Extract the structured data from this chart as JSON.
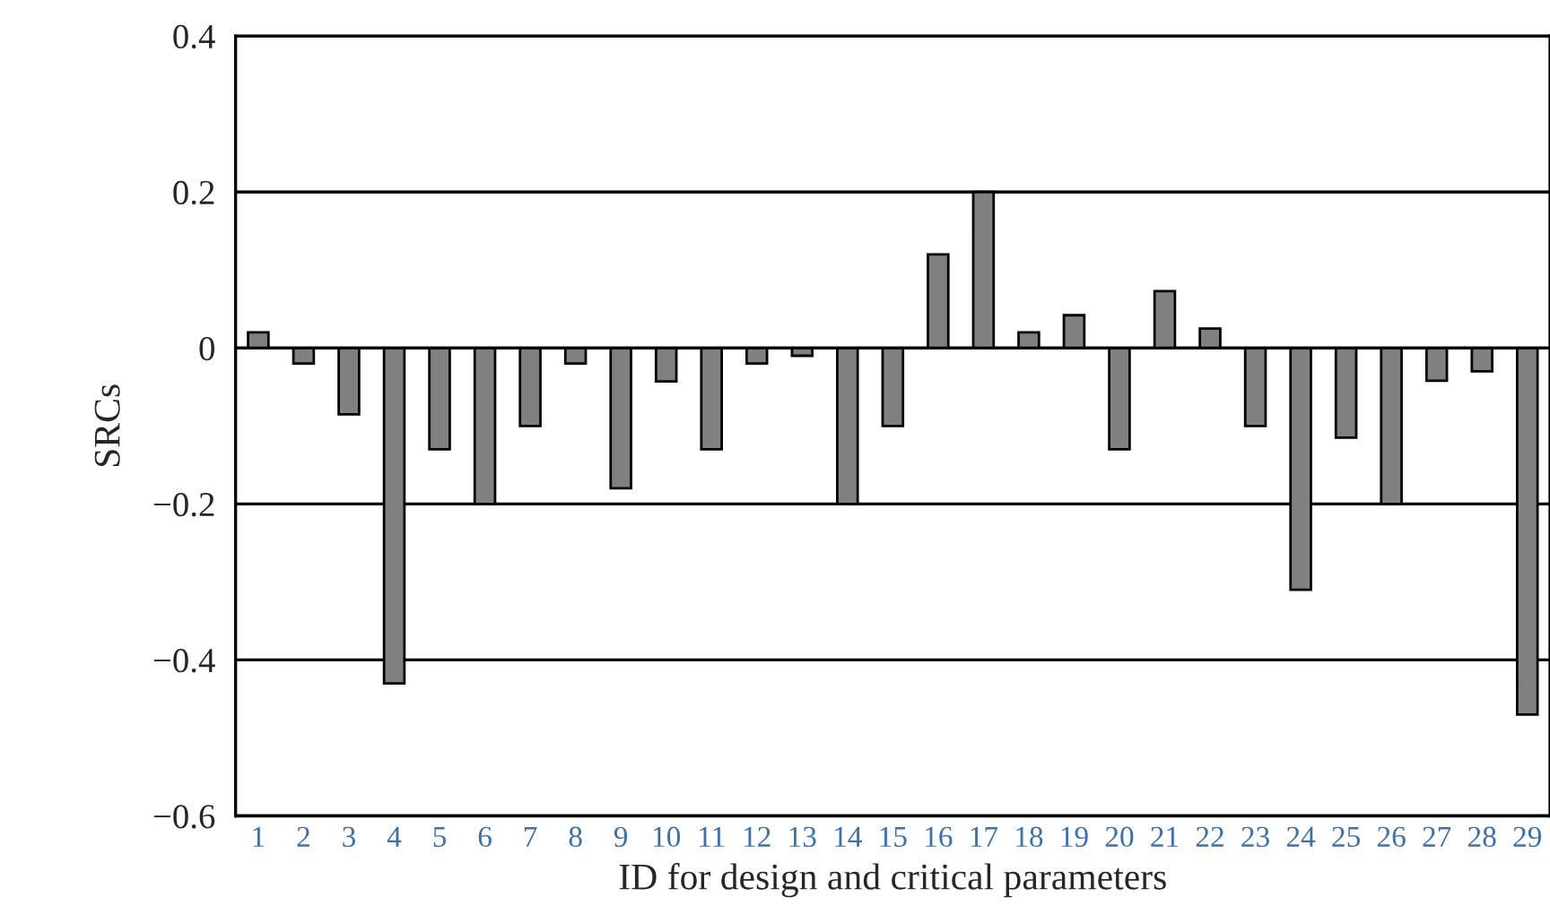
{
  "chart_data": {
    "type": "bar",
    "xlabel": "ID for design and critical parameters",
    "ylabel": "SRCs",
    "categories": [
      "1",
      "2",
      "3",
      "4",
      "5",
      "6",
      "7",
      "8",
      "9",
      "10",
      "11",
      "12",
      "13",
      "14",
      "15",
      "16",
      "17",
      "18",
      "19",
      "20",
      "21",
      "22",
      "23",
      "24",
      "25",
      "26",
      "27",
      "28",
      "29"
    ],
    "values": [
      0.02,
      -0.02,
      -0.085,
      -0.43,
      -0.13,
      -0.2,
      -0.1,
      -0.02,
      -0.18,
      -0.043,
      -0.13,
      -0.02,
      -0.01,
      -0.2,
      -0.1,
      0.12,
      0.2,
      0.02,
      0.042,
      -0.13,
      0.073,
      0.025,
      -0.1,
      -0.31,
      -0.115,
      -0.2,
      -0.042,
      -0.03,
      -0.47
    ],
    "color": "#808080",
    "ylim": [
      -0.6,
      0.4
    ],
    "yticks": [
      {
        "value": -0.6,
        "label": "−0.6"
      },
      {
        "value": -0.4,
        "label": "−0.4"
      },
      {
        "value": -0.2,
        "label": "−0.2"
      },
      0,
      0.2,
      0.4
    ],
    "grid": "y"
  }
}
